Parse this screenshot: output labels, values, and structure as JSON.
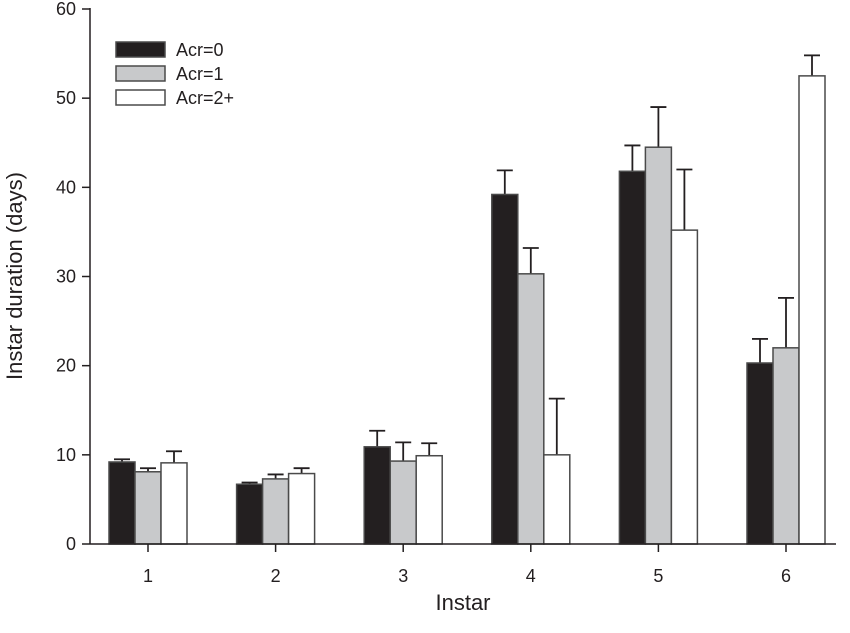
{
  "chart_data": {
    "type": "bar",
    "title": "",
    "xlabel": "Instar",
    "ylabel": "Instar duration (days)",
    "ylim": [
      0,
      60
    ],
    "yticks": [
      0,
      10,
      20,
      30,
      40,
      50,
      60
    ],
    "categories": [
      "1",
      "2",
      "3",
      "4",
      "5",
      "6"
    ],
    "legend_position": "top-left",
    "grid": false,
    "series": [
      {
        "name": "Acr=0",
        "color": "#231f20",
        "values": [
          9.2,
          6.7,
          10.9,
          39.2,
          41.8,
          20.3
        ],
        "error_upper": [
          9.5,
          6.9,
          12.7,
          41.9,
          44.7,
          23.0
        ]
      },
      {
        "name": "Acr=1",
        "color": "#c8c9cb",
        "values": [
          8.1,
          7.3,
          9.3,
          30.3,
          44.5,
          22.0
        ],
        "error_upper": [
          8.5,
          7.8,
          11.4,
          33.2,
          49.0,
          27.6
        ]
      },
      {
        "name": "Acr=2+",
        "color": "#ffffff",
        "values": [
          9.1,
          7.9,
          9.9,
          10.0,
          35.2,
          52.5
        ],
        "error_upper": [
          10.4,
          8.5,
          11.3,
          16.3,
          42.0,
          54.8
        ]
      }
    ]
  }
}
